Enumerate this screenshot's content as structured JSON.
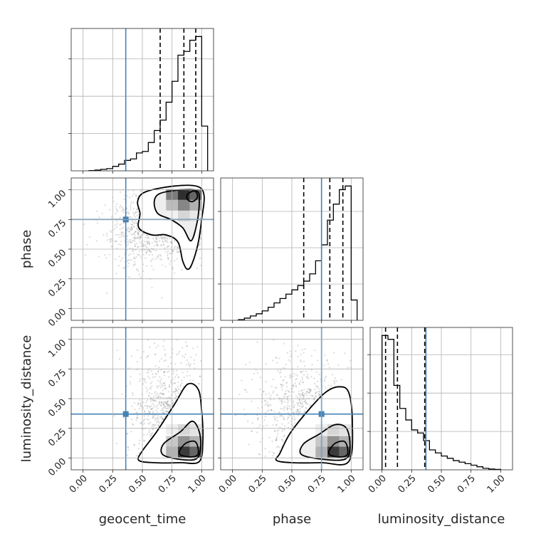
{
  "chart_data": {
    "type": "corner",
    "parameters": [
      "geocent_time",
      "phase",
      "luminosity_distance"
    ],
    "axis_labels": {
      "geocent_time": "geocent_time",
      "phase": "phase",
      "luminosity_distance": "luminosity_distance"
    },
    "ticks": [
      0.0,
      0.25,
      0.5,
      0.75,
      1.0
    ],
    "tick_labels": [
      "0.00",
      "0.25",
      "0.50",
      "0.75",
      "1.00"
    ],
    "xlim": [
      -0.1,
      1.1
    ],
    "grid": true,
    "colors": {
      "truth": "#4682b4",
      "line": "#000000",
      "scatter": "#7f7f7f"
    },
    "truths": {
      "geocent_time": 0.36,
      "phase": 0.75,
      "luminosity_distance": 0.37
    },
    "histograms": {
      "geocent_time": {
        "bin_edges": [
          0.05,
          0.1,
          0.15,
          0.2,
          0.25,
          0.3,
          0.35,
          0.4,
          0.45,
          0.5,
          0.55,
          0.6,
          0.65,
          0.7,
          0.75,
          0.8,
          0.85,
          0.9,
          0.95,
          1.0,
          1.05
        ],
        "counts": [
          0.3,
          1,
          2,
          3,
          6,
          9,
          14,
          16,
          24,
          26,
          38,
          54,
          68,
          92,
          120,
          155,
          160,
          175,
          180,
          60
        ],
        "quantiles": [
          0.65,
          0.85,
          0.95
        ]
      },
      "phase": {
        "bin_edges": [
          0.05,
          0.1,
          0.15,
          0.2,
          0.25,
          0.3,
          0.35,
          0.4,
          0.45,
          0.5,
          0.55,
          0.6,
          0.65,
          0.7,
          0.75,
          0.8,
          0.85,
          0.9,
          0.95,
          1.0,
          1.05
        ],
        "counts": [
          1,
          3,
          6,
          9,
          13,
          18,
          24,
          30,
          36,
          42,
          48,
          54,
          64,
          82,
          104,
          138,
          160,
          180,
          185,
          28
        ],
        "quantiles": [
          0.6,
          0.82,
          0.93
        ]
      },
      "luminosity_distance": {
        "bin_edges": [
          0.0,
          0.05,
          0.1,
          0.15,
          0.2,
          0.25,
          0.3,
          0.35,
          0.4,
          0.45,
          0.5,
          0.55,
          0.6,
          0.65,
          0.7,
          0.75,
          0.8,
          0.85,
          0.9,
          0.95,
          1.0
        ],
        "counts": [
          175,
          170,
          110,
          80,
          65,
          52,
          48,
          38,
          26,
          22,
          18,
          15,
          12,
          10,
          8,
          6,
          4,
          2,
          1,
          0.5
        ],
        "quantiles": [
          0.03,
          0.13,
          0.36
        ]
      }
    },
    "hist2d": [
      {
        "x": "geocent_time",
        "y": "phase",
        "mode": 0.93,
        "hist_x": [
          0.75,
          0.85,
          0.95
        ],
        "hist_y": [
          0.78,
          0.87,
          0.96
        ],
        "hist_w": [
          0.05,
          0.18,
          0.1,
          0.3,
          0.55,
          0.35,
          0.6,
          0.95,
          0.7
        ],
        "contours": [
          [
            [
              0.93,
              0.99
            ],
            [
              0.96,
              0.97
            ],
            [
              0.96,
              0.93
            ],
            [
              0.92,
              0.9
            ],
            [
              0.88,
              0.92
            ],
            [
              0.88,
              0.96
            ]
          ],
          [
            [
              0.65,
              0.97
            ],
            [
              0.83,
              1.0
            ],
            [
              0.96,
              0.99
            ],
            [
              0.98,
              0.9
            ],
            [
              0.96,
              0.72
            ],
            [
              0.91,
              0.57
            ],
            [
              0.84,
              0.68
            ],
            [
              0.74,
              0.75
            ],
            [
              0.63,
              0.8
            ],
            [
              0.6,
              0.9
            ]
          ],
          [
            [
              0.52,
              0.98
            ],
            [
              0.75,
              1.03
            ],
            [
              0.96,
              1.03
            ],
            [
              1.02,
              0.95
            ],
            [
              1.0,
              0.75
            ],
            [
              0.97,
              0.55
            ],
            [
              0.92,
              0.38
            ],
            [
              0.88,
              0.33
            ],
            [
              0.84,
              0.4
            ],
            [
              0.8,
              0.56
            ],
            [
              0.7,
              0.62
            ],
            [
              0.58,
              0.62
            ],
            [
              0.47,
              0.68
            ],
            [
              0.48,
              0.8
            ],
            [
              0.46,
              0.9
            ]
          ]
        ],
        "scatter": {
          "seed": 11,
          "n": 1700,
          "clusters": [
            {
              "w": 0.55,
              "cx": 0.8,
              "cy": 0.8,
              "sx": 0.15,
              "sy": 0.15
            },
            {
              "w": 0.45,
              "cx": 0.58,
              "cy": 0.68,
              "sx": 0.2,
              "sy": 0.17
            }
          ]
        }
      },
      {
        "x": "geocent_time",
        "y": "luminosity_distance",
        "mode": 0.92,
        "hist_x": [
          0.75,
          0.85,
          0.95
        ],
        "hist_y": [
          0.05,
          0.14,
          0.24
        ],
        "hist_w": [
          0.35,
          0.9,
          0.7,
          0.25,
          0.5,
          0.35,
          0.08,
          0.18,
          0.12
        ],
        "contours": [
          [
            [
              0.86,
              0.12
            ],
            [
              0.94,
              0.14
            ],
            [
              0.97,
              0.08
            ],
            [
              0.96,
              0.02
            ],
            [
              0.88,
              0.01
            ],
            [
              0.81,
              0.04
            ]
          ],
          [
            [
              0.68,
              0.12
            ],
            [
              0.82,
              0.22
            ],
            [
              0.92,
              0.31
            ],
            [
              0.98,
              0.22
            ],
            [
              0.99,
              0.08
            ],
            [
              0.95,
              -0.01
            ],
            [
              0.8,
              -0.01
            ],
            [
              0.67,
              0.03
            ]
          ],
          [
            [
              0.5,
              0.06
            ],
            [
              0.62,
              0.22
            ],
            [
              0.77,
              0.45
            ],
            [
              0.88,
              0.62
            ],
            [
              0.97,
              0.58
            ],
            [
              1.0,
              0.4
            ],
            [
              1.01,
              0.15
            ],
            [
              0.98,
              -0.03
            ],
            [
              0.82,
              -0.04
            ],
            [
              0.6,
              -0.04
            ],
            [
              0.47,
              -0.02
            ]
          ]
        ],
        "scatter": {
          "seed": 23,
          "n": 1700,
          "clusters": [
            {
              "w": 0.55,
              "cx": 0.85,
              "cy": 0.18,
              "sx": 0.1,
              "sy": 0.15
            },
            {
              "w": 0.45,
              "cx": 0.7,
              "cy": 0.38,
              "sx": 0.15,
              "sy": 0.25
            }
          ]
        }
      },
      {
        "x": "phase",
        "y": "luminosity_distance",
        "mode": 0.92,
        "hist_x": [
          0.75,
          0.85,
          0.95
        ],
        "hist_y": [
          0.05,
          0.14,
          0.24
        ],
        "hist_w": [
          0.35,
          0.9,
          0.7,
          0.25,
          0.5,
          0.35,
          0.08,
          0.18,
          0.12
        ],
        "contours": [
          [
            [
              0.86,
              0.12
            ],
            [
              0.94,
              0.14
            ],
            [
              0.97,
              0.08
            ],
            [
              0.96,
              0.02
            ],
            [
              0.88,
              0.01
            ],
            [
              0.81,
              0.04
            ]
          ],
          [
            [
              0.6,
              0.12
            ],
            [
              0.73,
              0.2
            ],
            [
              0.86,
              0.28
            ],
            [
              0.96,
              0.25
            ],
            [
              0.99,
              0.1
            ],
            [
              0.95,
              -0.01
            ],
            [
              0.75,
              -0.01
            ],
            [
              0.58,
              0.03
            ]
          ],
          [
            [
              0.4,
              0.04
            ],
            [
              0.48,
              0.2
            ],
            [
              0.62,
              0.38
            ],
            [
              0.78,
              0.55
            ],
            [
              0.9,
              0.6
            ],
            [
              0.98,
              0.55
            ],
            [
              1.01,
              0.3
            ],
            [
              0.98,
              -0.03
            ],
            [
              0.75,
              -0.04
            ],
            [
              0.5,
              -0.04
            ],
            [
              0.37,
              -0.02
            ]
          ]
        ],
        "scatter": {
          "seed": 37,
          "n": 1700,
          "clusters": [
            {
              "w": 0.55,
              "cx": 0.82,
              "cy": 0.18,
              "sx": 0.12,
              "sy": 0.15
            },
            {
              "w": 0.45,
              "cx": 0.6,
              "cy": 0.38,
              "sx": 0.2,
              "sy": 0.25
            }
          ]
        }
      }
    ]
  }
}
